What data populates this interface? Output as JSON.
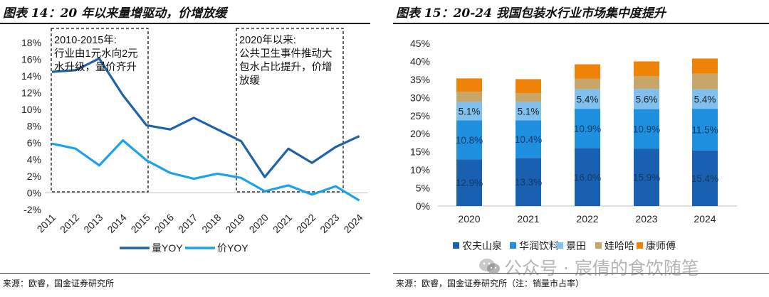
{
  "left": {
    "title": "图表 14：20 年以来量增驱动，价增放缓",
    "source": "来源：欧睿，国金证券研究所",
    "annotations": [
      {
        "lines": [
          "2010-2015年:",
          "行业由1元水向2元",
          "水升级，量价齐升"
        ]
      },
      {
        "lines": [
          "2020年以来:",
          "公共卫生事件推动大",
          "包水占比提升，价增",
          "放缓"
        ]
      }
    ]
  },
  "right": {
    "title": "图表 15：20-24 我国包装水行业市场集中度提升",
    "source": "来源：欧睿，国金证券研究所（注：销量市占率）"
  },
  "watermark": "公众号 · 宸倩的食饮随笔",
  "colors": {
    "dark_blue": "#1f63a6",
    "light_blue": "#1aa3ec",
    "nongfu": "#1a60b0",
    "huarun": "#1f8fe0",
    "jingtian": "#7fc0ee",
    "wahaha": "#c8a66a",
    "kangshifu": "#ee8308"
  },
  "chart_data": [
    {
      "type": "line",
      "x": [
        "2011",
        "2012",
        "2013",
        "2014",
        "2015",
        "2016",
        "2017",
        "2018",
        "2019",
        "2020",
        "2021",
        "2022",
        "2023",
        "2024"
      ],
      "series": [
        {
          "name": "量YOY",
          "values": [
            14.5,
            14.7,
            16.1,
            11.7,
            8.1,
            7.6,
            9.0,
            7.6,
            6.2,
            1.9,
            5.3,
            3.6,
            5.5,
            6.8
          ]
        },
        {
          "name": "价YOY",
          "values": [
            5.9,
            5.3,
            3.3,
            6.3,
            3.9,
            2.4,
            1.7,
            2.3,
            1.8,
            0.2,
            0.9,
            -0.2,
            0.8,
            -0.9
          ]
        }
      ],
      "ylim": [
        -2,
        18
      ],
      "yticks": [
        "-2%",
        "0%",
        "2%",
        "4%",
        "6%",
        "8%",
        "10%",
        "12%",
        "14%",
        "16%",
        "18%"
      ],
      "legend": "bottom"
    },
    {
      "type": "bar",
      "stacked": true,
      "categories": [
        "2020",
        "2021",
        "2022",
        "2023",
        "2024"
      ],
      "series": [
        {
          "name": "农夫山泉",
          "values": [
            12.9,
            13.3,
            16.0,
            15.9,
            15.4
          ],
          "labels": [
            "12.9%",
            "13.3%",
            "16.0%",
            "15.9%",
            "15.4%"
          ]
        },
        {
          "name": "华润饮料",
          "values": [
            10.8,
            10.4,
            10.9,
            10.9,
            11.5
          ],
          "labels": [
            "10.8%",
            "10.4%",
            "10.9%",
            "10.9%",
            "11.5%"
          ]
        },
        {
          "name": "景田",
          "values": [
            5.1,
            5.1,
            5.4,
            5.6,
            5.4
          ],
          "labels": [
            "5.1%",
            "5.1%",
            "5.4%",
            "5.6%",
            "5.4%"
          ]
        },
        {
          "name": "娃哈哈",
          "values": [
            2.8,
            2.4,
            2.9,
            3.5,
            4.3
          ]
        },
        {
          "name": "康师傅",
          "values": [
            3.7,
            3.9,
            4.0,
            4.1,
            4.2
          ]
        }
      ],
      "ylim": [
        0,
        45
      ],
      "yticks": [
        "0%",
        "5%",
        "10%",
        "15%",
        "20%",
        "25%",
        "30%",
        "35%",
        "40%",
        "45%"
      ],
      "legend": "bottom"
    }
  ]
}
